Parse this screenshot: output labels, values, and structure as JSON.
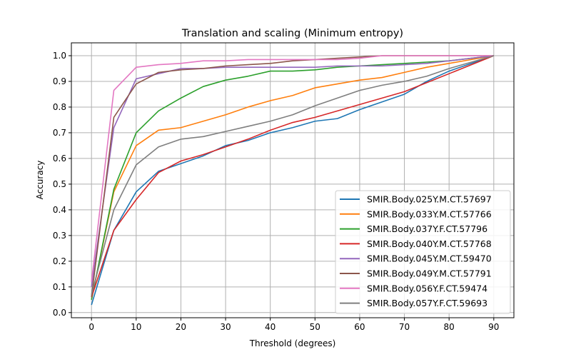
{
  "chart_data": {
    "type": "line",
    "title": "Translation and scaling (Minimum entropy)",
    "xlabel": "Threshold (degrees)",
    "ylabel": "Accuracy",
    "xlim": [
      -4.5,
      94.5
    ],
    "ylim": [
      -0.02,
      1.05
    ],
    "xticks": [
      0,
      10,
      20,
      30,
      40,
      50,
      60,
      70,
      80,
      90
    ],
    "yticks": [
      0.0,
      0.1,
      0.2,
      0.3,
      0.4,
      0.5,
      0.6,
      0.7,
      0.8,
      0.9,
      1.0
    ],
    "grid": true,
    "legend_position": "lower right",
    "x": [
      0,
      5,
      10,
      15,
      20,
      25,
      30,
      35,
      40,
      45,
      50,
      55,
      60,
      65,
      70,
      75,
      80,
      85,
      90
    ],
    "series": [
      {
        "name": "SMIR.Body.025Y.M.CT.57697",
        "color": "#1f77b4",
        "values": [
          0.03,
          0.32,
          0.47,
          0.55,
          0.58,
          0.61,
          0.65,
          0.67,
          0.7,
          0.72,
          0.745,
          0.755,
          0.79,
          0.82,
          0.85,
          0.9,
          0.94,
          0.97,
          1.0
        ]
      },
      {
        "name": "SMIR.Body.033Y.M.CT.57766",
        "color": "#ff7f0e",
        "values": [
          0.05,
          0.47,
          0.65,
          0.71,
          0.72,
          0.745,
          0.77,
          0.8,
          0.825,
          0.845,
          0.875,
          0.89,
          0.905,
          0.915,
          0.935,
          0.955,
          0.97,
          0.985,
          1.0
        ]
      },
      {
        "name": "SMIR.Body.037Y.F.CT.57796",
        "color": "#2ca02c",
        "values": [
          0.05,
          0.48,
          0.7,
          0.785,
          0.835,
          0.88,
          0.905,
          0.92,
          0.94,
          0.94,
          0.945,
          0.955,
          0.96,
          0.965,
          0.97,
          0.975,
          0.98,
          0.99,
          1.0
        ]
      },
      {
        "name": "SMIR.Body.040Y.M.CT.57768",
        "color": "#d62728",
        "values": [
          0.06,
          0.32,
          0.44,
          0.545,
          0.59,
          0.615,
          0.645,
          0.675,
          0.71,
          0.74,
          0.76,
          0.785,
          0.81,
          0.835,
          0.86,
          0.895,
          0.93,
          0.965,
          1.0
        ]
      },
      {
        "name": "SMIR.Body.045Y.M.CT.59470",
        "color": "#9467bd",
        "values": [
          0.1,
          0.72,
          0.91,
          0.93,
          0.95,
          0.95,
          0.955,
          0.955,
          0.955,
          0.955,
          0.955,
          0.96,
          0.96,
          0.96,
          0.965,
          0.97,
          0.98,
          0.99,
          1.0
        ]
      },
      {
        "name": "SMIR.Body.049Y.M.CT.57791",
        "color": "#8c564b",
        "values": [
          0.06,
          0.76,
          0.89,
          0.935,
          0.945,
          0.95,
          0.96,
          0.965,
          0.97,
          0.98,
          0.985,
          0.99,
          0.995,
          1.0,
          1.0,
          1.0,
          1.0,
          1.0,
          1.0
        ]
      },
      {
        "name": "SMIR.Body.056Y.F.CT.59474",
        "color": "#e377c2",
        "values": [
          0.12,
          0.865,
          0.955,
          0.965,
          0.97,
          0.98,
          0.98,
          0.985,
          0.985,
          0.985,
          0.985,
          0.985,
          0.99,
          1.0,
          1.0,
          1.0,
          1.0,
          1.0,
          1.0
        ]
      },
      {
        "name": "SMIR.Body.057Y.F.CT.59693",
        "color": "#7f7f7f",
        "values": [
          0.07,
          0.4,
          0.575,
          0.645,
          0.675,
          0.685,
          0.705,
          0.725,
          0.745,
          0.77,
          0.805,
          0.835,
          0.865,
          0.885,
          0.9,
          0.92,
          0.95,
          0.975,
          1.0
        ]
      }
    ]
  }
}
